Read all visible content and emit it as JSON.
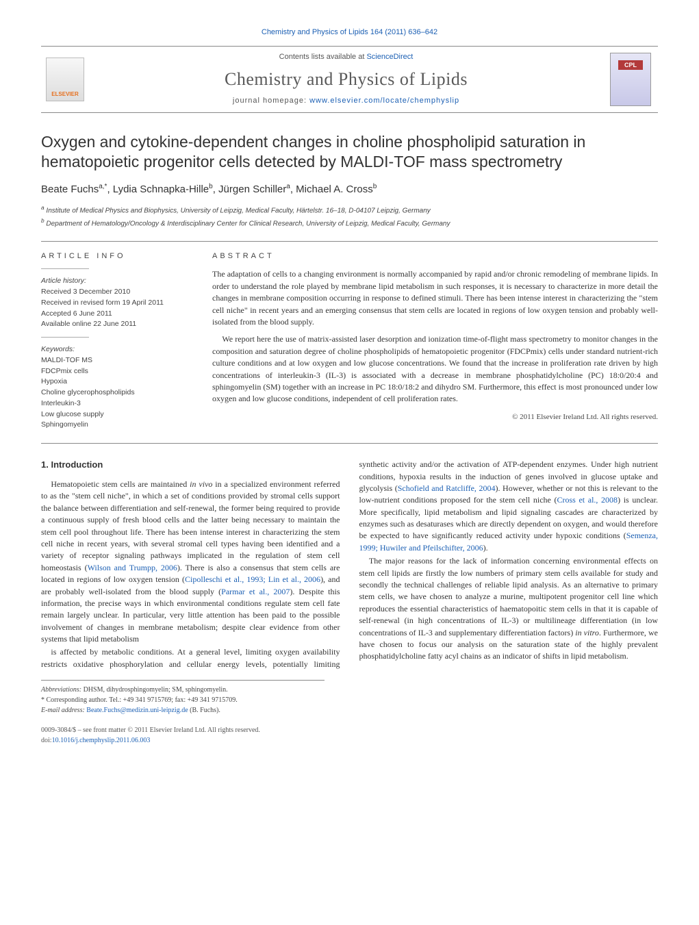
{
  "header": {
    "citation": "Chemistry and Physics of Lipids 164 (2011) 636–642",
    "contents_line_prefix": "Contents lists available at ",
    "contents_link": "ScienceDirect",
    "journal_name": "Chemistry and Physics of Lipids",
    "homepage_prefix": "journal homepage: ",
    "homepage_url": "www.elsevier.com/locate/chemphyslip",
    "publisher_logo": "ELSEVIER",
    "cover_label": "CPL"
  },
  "title": "Oxygen and cytokine-dependent changes in choline phospholipid saturation in hematopoietic progenitor cells detected by MALDI-TOF mass spectrometry",
  "authors_html": "Beate Fuchs<sup>a,*</sup>, Lydia Schnapka-Hille<sup>b</sup>, Jürgen Schiller<sup>a</sup>, Michael A. Cross<sup>b</sup>",
  "affiliations": {
    "a": "Institute of Medical Physics and Biophysics, University of Leipzig, Medical Faculty, Härtelstr. 16–18, D-04107 Leipzig, Germany",
    "b": "Department of Hematology/Oncology & Interdisciplinary Center for Clinical Research, University of Leipzig, Medical Faculty, Germany"
  },
  "article_info": {
    "label": "ARTICLE INFO",
    "history_heading": "Article history:",
    "history": [
      "Received 3 December 2010",
      "Received in revised form 19 April 2011",
      "Accepted 6 June 2011",
      "Available online 22 June 2011"
    ],
    "keywords_heading": "Keywords:",
    "keywords": [
      "MALDI-TOF MS",
      "FDCPmix cells",
      "Hypoxia",
      "Choline glycerophospholipids",
      "Interleukin-3",
      "Low glucose supply",
      "Sphingomyelin"
    ]
  },
  "abstract": {
    "label": "ABSTRACT",
    "paragraphs": [
      "The adaptation of cells to a changing environment is normally accompanied by rapid and/or chronic remodeling of membrane lipids. In order to understand the role played by membrane lipid metabolism in such responses, it is necessary to characterize in more detail the changes in membrane composition occurring in response to defined stimuli. There has been intense interest in characterizing the \"stem cell niche\" in recent years and an emerging consensus that stem cells are located in regions of low oxygen tension and probably well-isolated from the blood supply.",
      "We report here the use of matrix-assisted laser desorption and ionization time-of-flight mass spectrometry to monitor changes in the composition and saturation degree of choline phospholipids of hematopoietic progenitor (FDCPmix) cells under standard nutrient-rich culture conditions and at low oxygen and low glucose concentrations. We found that the increase in proliferation rate driven by high concentrations of interleukin-3 (IL-3) is associated with a decrease in membrane phosphatidylcholine (PC) 18:0/20:4 and sphingomyelin (SM) together with an increase in PC 18:0/18:2 and dihydro SM. Furthermore, this effect is most pronounced under low oxygen and low glucose conditions, independent of cell proliferation rates."
    ],
    "copyright": "© 2011 Elsevier Ireland Ltd. All rights reserved."
  },
  "body": {
    "section_heading": "1. Introduction",
    "paragraphs": [
      "Hematopoietic stem cells are maintained in vivo in a specialized environment referred to as the \"stem cell niche\", in which a set of conditions provided by stromal cells support the balance between differentiation and self-renewal, the former being required to provide a continuous supply of fresh blood cells and the latter being necessary to maintain the stem cell pool throughout life. There has been intense interest in characterizing the stem cell niche in recent years, with several stromal cell types having been identified and a variety of receptor signaling pathways implicated in the regulation of stem cell homeostasis (Wilson and Trumpp, 2006). There is also a consensus that stem cells are located in regions of low oxygen tension (Cipolleschi et al., 1993; Lin et al., 2006), and are probably well-isolated from the blood supply (Parmar et al., 2007). Despite this information, the precise ways in which environmental conditions regulate stem cell fate remain largely unclear. In particular, very little attention has been paid to the possible involvement of changes in membrane metabolism; despite clear evidence from other systems that lipid metabolism",
      "is affected by metabolic conditions. At a general level, limiting oxygen availability restricts oxidative phosphorylation and cellular energy levels, potentially limiting synthetic activity and/or the activation of ATP-dependent enzymes. Under high nutrient conditions, hypoxia results in the induction of genes involved in glucose uptake and glycolysis (Schofield and Ratcliffe, 2004). However, whether or not this is relevant to the low-nutrient conditions proposed for the stem cell niche (Cross et al., 2008) is unclear. More specifically, lipid metabolism and lipid signaling cascades are characterized by enzymes such as desaturases which are directly dependent on oxygen, and would therefore be expected to have significantly reduced activity under hypoxic conditions (Semenza, 1999; Huwiler and Pfeilschifter, 2006).",
      "The major reasons for the lack of information concerning environmental effects on stem cell lipids are firstly the low numbers of primary stem cells available for study and secondly the technical challenges of reliable lipid analysis. As an alternative to primary stem cells, we have chosen to analyze a murine, multipotent progenitor cell line which reproduces the essential characteristics of haematopoitic stem cells in that it is capable of self-renewal (in high concentrations of IL-3) or multilineage differentiation (in low concentrations of IL-3 and supplementary differentiation factors) in vitro. Furthermore, we have chosen to focus our analysis on the saturation state of the highly prevalent phosphatidylcholine fatty acyl chains as an indicator of shifts in lipid metabolism."
    ],
    "citations": [
      "Wilson and Trumpp, 2006",
      "Cipolleschi et al., 1993; Lin et al., 2006",
      "Parmar et al., 2007",
      "Schofield and Ratcliffe, 2004",
      "Cross et al., 2008",
      "Semenza, 1999; Huwiler and Pfeilschifter, 2006"
    ]
  },
  "footnotes": {
    "abbrev_label": "Abbreviations:",
    "abbrev_text": "DHSM, dihydrosphingomyelin; SM, sphingomyelin.",
    "corr_label": "Corresponding author.",
    "corr_text": "Tel.: +49 341 9715769; fax: +49 341 9715709.",
    "email_label": "E-mail address:",
    "email": "Beate.Fuchs@medizin.uni-leipzig.de",
    "email_person": "(B. Fuchs)."
  },
  "doi": {
    "line1": "0009-3084/$ – see front matter © 2011 Elsevier Ireland Ltd. All rights reserved.",
    "line2_prefix": "doi:",
    "line2_link": "10.1016/j.chemphyslip.2011.06.003"
  },
  "colors": {
    "link": "#1b5fb3",
    "text": "#333333",
    "rule": "#888888",
    "publisher_orange": "#e6701f",
    "cover_red": "#b33a3a"
  }
}
